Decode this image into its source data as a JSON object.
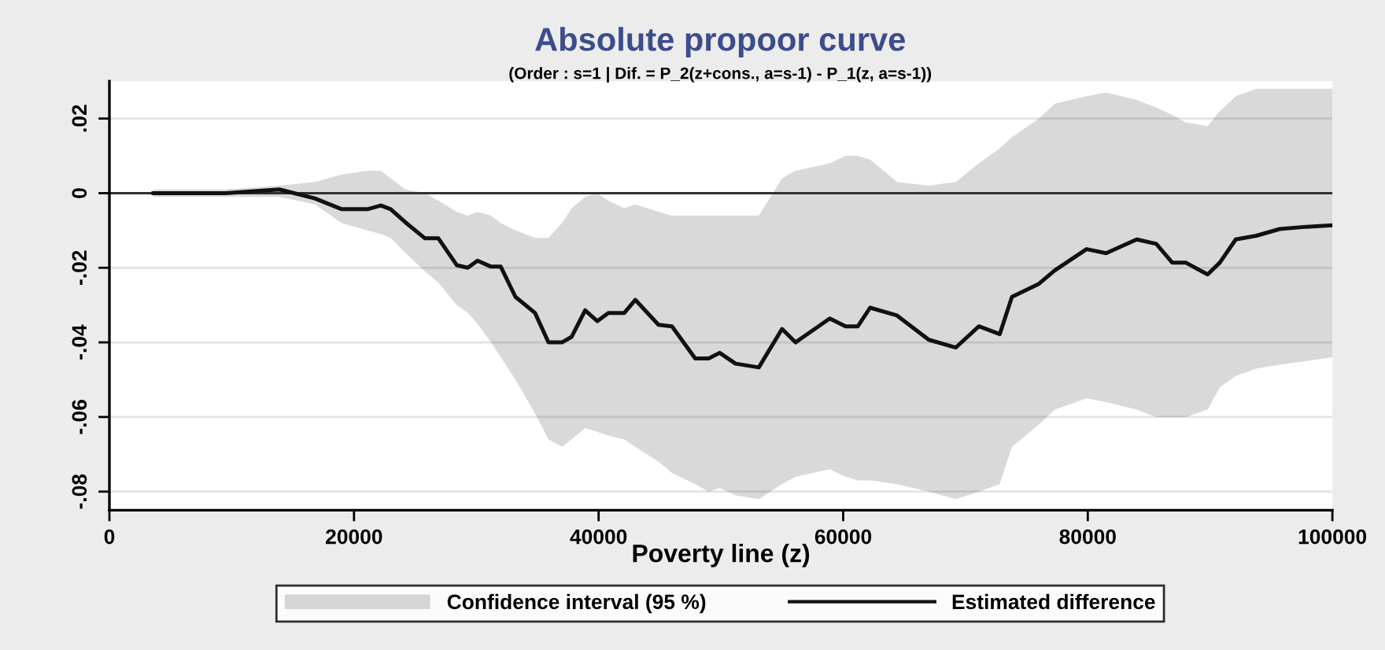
{
  "chart_data": {
    "type": "line",
    "title": "Absolute propoor curve",
    "subtitle": "(Order : s=1 | Dif. = P_2(z+cons., a=s-1) - P_1(z, a=s-1))",
    "xlabel": "Poverty line (z)",
    "annotations": [
      "Confidence interval (95 %)"
    ],
    "xlim": [
      0,
      100000
    ],
    "xticks": [
      0,
      20000,
      40000,
      60000,
      80000,
      100000
    ],
    "ylim": [
      -0.085,
      0.03
    ],
    "yticks": [
      {
        "value": -0.08,
        "label": "-.08"
      },
      {
        "value": -0.06,
        "label": "-.06"
      },
      {
        "value": -0.04,
        "label": "-.04"
      },
      {
        "value": -0.02,
        "label": "-.02"
      },
      {
        "value": 0,
        "label": "0"
      },
      {
        "value": 0.02,
        "label": ".02"
      }
    ],
    "grid": "y",
    "legend": "bottom",
    "marker": "none",
    "line_style": "solid",
    "ref_lines": [
      {
        "axis": "y",
        "value": 0,
        "color": "#303030"
      }
    ],
    "x": [
      3600,
      9500,
      13900,
      16800,
      19000,
      21100,
      22200,
      23000,
      24200,
      25800,
      26900,
      28400,
      29300,
      30100,
      31200,
      32000,
      33200,
      34800,
      35900,
      37000,
      37800,
      38900,
      39900,
      40800,
      42100,
      43000,
      44900,
      46000,
      47900,
      49000,
      49900,
      51200,
      53100,
      55000,
      56100,
      58900,
      60200,
      61200,
      62200,
      64400,
      67000,
      69200,
      71100,
      72800,
      73800,
      76000,
      77300,
      79900,
      81500,
      84000,
      85600,
      86900,
      88000,
      89800,
      90800,
      92100,
      93800,
      95700,
      97900,
      100000
    ],
    "series": [
      {
        "name": "Estimated difference",
        "color": "#111111",
        "values": [
          0,
          0,
          0.001,
          -0.0014,
          -0.0043,
          -0.0043,
          -0.0033,
          -0.0043,
          -0.0078,
          -0.0121,
          -0.0121,
          -0.0193,
          -0.02,
          -0.0181,
          -0.0197,
          -0.0197,
          -0.0278,
          -0.0321,
          -0.04,
          -0.04,
          -0.0385,
          -0.0314,
          -0.0343,
          -0.0321,
          -0.0321,
          -0.0286,
          -0.0353,
          -0.0357,
          -0.0443,
          -0.0443,
          -0.0428,
          -0.0457,
          -0.0467,
          -0.0364,
          -0.04,
          -0.0336,
          -0.0357,
          -0.0357,
          -0.0307,
          -0.0328,
          -0.0393,
          -0.0414,
          -0.0357,
          -0.0378,
          -0.0278,
          -0.0243,
          -0.0207,
          -0.015,
          -0.0161,
          -0.0124,
          -0.0136,
          -0.0186,
          -0.0186,
          -0.0218,
          -0.0186,
          -0.0124,
          -0.0114,
          -0.0096,
          -0.009,
          -0.0086
        ],
        "upper": [
          0.001,
          0.001,
          0.002,
          0.003,
          0.005,
          0.006,
          0.006,
          0.004,
          0.001,
          0,
          -0.002,
          -0.005,
          -0.006,
          -0.005,
          -0.006,
          -0.008,
          -0.01,
          -0.012,
          -0.012,
          -0.008,
          -0.004,
          -0.001,
          0,
          -0.002,
          -0.004,
          -0.003,
          -0.005,
          -0.006,
          -0.006,
          -0.006,
          -0.006,
          -0.006,
          -0.006,
          0.004,
          0.006,
          0.008,
          0.01,
          0.01,
          0.009,
          0.003,
          0.002,
          0.003,
          0.008,
          0.012,
          0.015,
          0.02,
          0.024,
          0.026,
          0.027,
          0.025,
          0.023,
          0.021,
          0.019,
          0.018,
          0.022,
          0.026,
          0.028,
          0.028,
          0.028,
          0.028
        ],
        "lower": [
          -0.001,
          -0.001,
          -0.001,
          -0.003,
          -0.008,
          -0.01,
          -0.011,
          -0.012,
          -0.016,
          -0.021,
          -0.024,
          -0.03,
          -0.032,
          -0.035,
          -0.04,
          -0.044,
          -0.05,
          -0.059,
          -0.066,
          -0.068,
          -0.066,
          -0.063,
          -0.064,
          -0.065,
          -0.066,
          -0.068,
          -0.072,
          -0.075,
          -0.078,
          -0.08,
          -0.079,
          -0.081,
          -0.082,
          -0.078,
          -0.076,
          -0.074,
          -0.076,
          -0.077,
          -0.077,
          -0.078,
          -0.08,
          -0.082,
          -0.08,
          -0.078,
          -0.068,
          -0.062,
          -0.058,
          -0.055,
          -0.056,
          -0.058,
          -0.06,
          -0.06,
          -0.06,
          -0.058,
          -0.052,
          -0.049,
          -0.047,
          -0.046,
          -0.045,
          -0.044
        ]
      }
    ]
  }
}
